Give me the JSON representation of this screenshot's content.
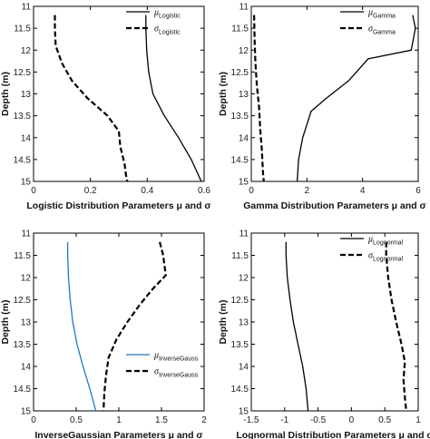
{
  "chart_data": [
    {
      "type": "line",
      "xlabel": "Logistic Distribution Parameters μ and σ",
      "ylabel": "Depth (m)",
      "xlim": [
        0,
        0.6
      ],
      "ylim": [
        11,
        15
      ],
      "y_reversed": true,
      "xticks": [
        "0",
        "0.2",
        "0.4",
        "0.6"
      ],
      "xtick_values": [
        0,
        0.2,
        0.4,
        0.6
      ],
      "yticks": [
        "11",
        "11.5",
        "12",
        "12.5",
        "13",
        "13.5",
        "14",
        "14.5",
        "15"
      ],
      "ytick_values": [
        11,
        11.5,
        12,
        12.5,
        13,
        13.5,
        14,
        14.5,
        15
      ],
      "legend_position": "top-right",
      "series": [
        {
          "symbol": "μ",
          "sub": "Logistic",
          "style": "solid",
          "color": "#000000",
          "points": [
            [
              0.395,
              11.2
            ],
            [
              0.395,
              11.5
            ],
            [
              0.398,
              12.0
            ],
            [
              0.405,
              12.5
            ],
            [
              0.42,
              13.0
            ],
            [
              0.46,
              13.5
            ],
            [
              0.51,
              14.0
            ],
            [
              0.555,
              14.5
            ],
            [
              0.59,
              15.0
            ]
          ]
        },
        {
          "symbol": "σ",
          "sub": "Logistic",
          "style": "dashed",
          "color": "#000000",
          "points": [
            [
              0.075,
              11.2
            ],
            [
              0.075,
              11.5
            ],
            [
              0.078,
              11.9
            ],
            [
              0.1,
              12.3
            ],
            [
              0.135,
              12.7
            ],
            [
              0.19,
              13.1
            ],
            [
              0.26,
              13.5
            ],
            [
              0.3,
              13.85
            ],
            [
              0.305,
              14.2
            ],
            [
              0.32,
              14.6
            ],
            [
              0.325,
              14.85
            ],
            [
              0.33,
              15.0
            ]
          ]
        }
      ]
    },
    {
      "type": "line",
      "xlabel": "Gamma Distribution Parameters μ and σ",
      "ylabel": "Depth (m)",
      "xlim": [
        0,
        6
      ],
      "ylim": [
        11,
        15
      ],
      "y_reversed": true,
      "xticks": [
        "0",
        "2",
        "4",
        "6"
      ],
      "xtick_values": [
        0,
        2,
        4,
        6
      ],
      "yticks": [
        "11",
        "11.5",
        "12",
        "12.5",
        "13",
        "13.5",
        "14",
        "14.5",
        "15"
      ],
      "ytick_values": [
        11,
        11.5,
        12,
        12.5,
        13,
        13.5,
        14,
        14.5,
        15
      ],
      "legend_position": "top-right",
      "series": [
        {
          "symbol": "μ",
          "sub": "Gamma",
          "style": "solid",
          "color": "#000000",
          "points": [
            [
              5.8,
              11.2
            ],
            [
              5.9,
              11.5
            ],
            [
              5.75,
              12.0
            ],
            [
              4.2,
              12.2
            ],
            [
              3.5,
              12.7
            ],
            [
              2.7,
              13.1
            ],
            [
              2.15,
              13.4
            ],
            [
              1.85,
              14.0
            ],
            [
              1.7,
              14.5
            ],
            [
              1.65,
              15.0
            ]
          ]
        },
        {
          "symbol": "σ",
          "sub": "Gamma",
          "style": "dashed",
          "color": "#000000",
          "points": [
            [
              0.1,
              11.2
            ],
            [
              0.12,
              11.8
            ],
            [
              0.15,
              12.3
            ],
            [
              0.2,
              12.8
            ],
            [
              0.28,
              13.3
            ],
            [
              0.32,
              13.8
            ],
            [
              0.38,
              14.3
            ],
            [
              0.42,
              14.8
            ],
            [
              0.45,
              15.0
            ]
          ]
        }
      ]
    },
    {
      "type": "line",
      "xlabel": "InverseGaussian Parameters μ and σ",
      "ylabel": "Depth (m)",
      "xlim": [
        0,
        2
      ],
      "ylim": [
        11,
        15
      ],
      "y_reversed": true,
      "xticks": [
        "0",
        "0.5",
        "1",
        "1.5",
        "2"
      ],
      "xtick_values": [
        0,
        0.5,
        1,
        1.5,
        2
      ],
      "yticks": [
        "11",
        "11.5",
        "12",
        "12.5",
        "13",
        "13.5",
        "14",
        "14.5",
        "15"
      ],
      "ytick_values": [
        11,
        11.5,
        12,
        12.5,
        13,
        13.5,
        14,
        14.5,
        15
      ],
      "legend_position": "bottom-right",
      "series": [
        {
          "symbol": "μ",
          "sub": "InverseGauss",
          "style": "solid",
          "color": "#1f77c8",
          "points": [
            [
              0.4,
              11.2
            ],
            [
              0.4,
              11.5
            ],
            [
              0.41,
              12.0
            ],
            [
              0.43,
              12.5
            ],
            [
              0.46,
              13.0
            ],
            [
              0.51,
              13.5
            ],
            [
              0.58,
              14.0
            ],
            [
              0.66,
              14.5
            ],
            [
              0.73,
              15.0
            ]
          ]
        },
        {
          "symbol": "σ",
          "sub": "InverseGauss",
          "style": "dashed",
          "color": "#000000",
          "points": [
            [
              1.48,
              11.2
            ],
            [
              1.52,
              11.5
            ],
            [
              1.55,
              11.95
            ],
            [
              1.4,
              12.25
            ],
            [
              1.25,
              12.6
            ],
            [
              1.1,
              13.0
            ],
            [
              0.97,
              13.4
            ],
            [
              0.88,
              13.8
            ],
            [
              0.85,
              14.2
            ],
            [
              0.83,
              14.6
            ],
            [
              0.82,
              15.0
            ]
          ]
        }
      ]
    },
    {
      "type": "line",
      "xlabel": "Lognormal Distribution Parameters μ and σ",
      "ylabel": "Depth (m)",
      "xlim": [
        -1.5,
        1
      ],
      "ylim": [
        11,
        15
      ],
      "y_reversed": true,
      "xticks": [
        "-1.5",
        "-1",
        "-0.5",
        "0",
        "0.5",
        "1"
      ],
      "xtick_values": [
        -1.5,
        -1,
        -0.5,
        0,
        0.5,
        1
      ],
      "yticks": [
        "11",
        "11.5",
        "12",
        "12.5",
        "13",
        "13.5",
        "14",
        "14.5",
        "15"
      ],
      "ytick_values": [
        11,
        11.5,
        12,
        12.5,
        13,
        13.5,
        14,
        14.5,
        15
      ],
      "legend_position": "top-right",
      "series": [
        {
          "symbol": "μ",
          "sub": "Lognormal",
          "style": "solid",
          "color": "#000000",
          "points": [
            [
              -0.98,
              11.2
            ],
            [
              -0.98,
              11.5
            ],
            [
              -0.96,
              12.0
            ],
            [
              -0.92,
              12.5
            ],
            [
              -0.87,
              13.0
            ],
            [
              -0.8,
              13.5
            ],
            [
              -0.73,
              14.0
            ],
            [
              -0.68,
              14.5
            ],
            [
              -0.65,
              15.0
            ]
          ]
        },
        {
          "symbol": "σ",
          "sub": "Lognormal",
          "style": "dashed",
          "color": "#000000",
          "points": [
            [
              0.52,
              11.2
            ],
            [
              0.52,
              11.5
            ],
            [
              0.55,
              12.0
            ],
            [
              0.6,
              12.5
            ],
            [
              0.67,
              13.0
            ],
            [
              0.75,
              13.5
            ],
            [
              0.8,
              13.9
            ],
            [
              0.78,
              14.3
            ],
            [
              0.8,
              14.7
            ],
            [
              0.82,
              15.0
            ]
          ]
        }
      ]
    }
  ]
}
